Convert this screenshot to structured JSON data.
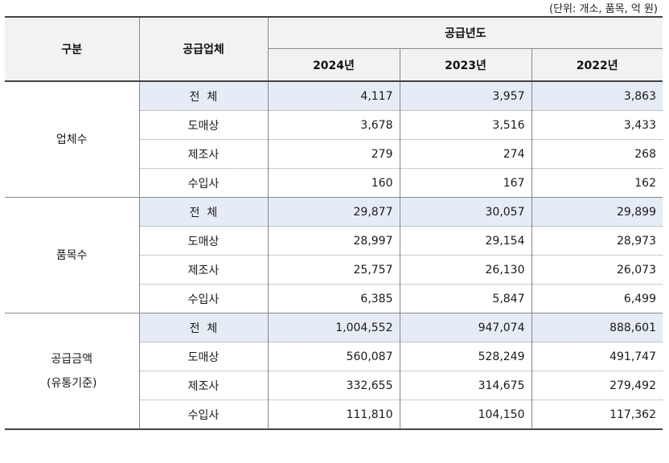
{
  "unit_note": "(단위: 개소, 품목, 억 원)",
  "header": {
    "col_category": "구분",
    "col_supplier": "공급업체",
    "col_year_group": "공급년도",
    "years": [
      "2024년",
      "2023년",
      "2022년"
    ]
  },
  "groups": [
    {
      "category_lines": [
        "업체수"
      ],
      "rows": [
        {
          "type": "전  체",
          "values": [
            "4,117",
            "3,957",
            "3,863"
          ]
        },
        {
          "type": "도매상",
          "values": [
            "3,678",
            "3,516",
            "3,433"
          ]
        },
        {
          "type": "제조사",
          "values": [
            "279",
            "274",
            "268"
          ]
        },
        {
          "type": "수입사",
          "values": [
            "160",
            "167",
            "162"
          ]
        }
      ]
    },
    {
      "category_lines": [
        "품목수"
      ],
      "rows": [
        {
          "type": "전  체",
          "values": [
            "29,877",
            "30,057",
            "29,899"
          ]
        },
        {
          "type": "도매상",
          "values": [
            "28,997",
            "29,154",
            "28,973"
          ]
        },
        {
          "type": "제조사",
          "values": [
            "25,757",
            "26,130",
            "26,073"
          ]
        },
        {
          "type": "수입사",
          "values": [
            "6,385",
            "5,847",
            "6,499"
          ]
        }
      ]
    },
    {
      "category_lines": [
        "공급금액",
        "(유통기준)"
      ],
      "rows": [
        {
          "type": "전  체",
          "values": [
            "1,004,552",
            "947,074",
            "888,601"
          ]
        },
        {
          "type": "도매상",
          "values": [
            "560,087",
            "528,249",
            "491,747"
          ]
        },
        {
          "type": "제조사",
          "values": [
            "332,655",
            "314,675",
            "279,492"
          ]
        },
        {
          "type": "수입사",
          "values": [
            "111,810",
            "104,150",
            "117,362"
          ]
        }
      ]
    }
  ],
  "colors": {
    "total_row_bg": "#e5ecf5",
    "header_bg": "#f2f2f2"
  }
}
